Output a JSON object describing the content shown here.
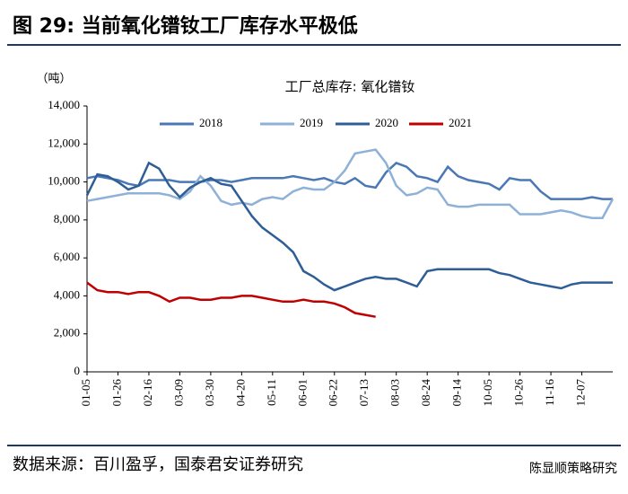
{
  "header": {
    "figure_title": "图 29:  当前氧化镨钕工厂库存水平极低"
  },
  "footer": {
    "source": "数据来源：百川盈孚，国泰君安证券研究",
    "watermark": "陈显顺策略研究"
  },
  "chart_data": {
    "type": "line",
    "title": "工厂总库存: 氧化镨钕",
    "y_unit": "（吨）",
    "categories": [
      "01-05",
      null,
      null,
      "01-26",
      null,
      null,
      "02-16",
      null,
      null,
      "03-09",
      null,
      null,
      "03-30",
      null,
      null,
      "04-20",
      null,
      null,
      "05-11",
      null,
      null,
      "06-01",
      null,
      null,
      "06-22",
      null,
      null,
      "07-13",
      null,
      null,
      "08-03",
      null,
      null,
      "08-24",
      null,
      null,
      "09-14",
      null,
      null,
      "10-05",
      null,
      null,
      "10-26",
      null,
      null,
      "11-16",
      null,
      null,
      "12-07",
      null,
      null,
      null
    ],
    "ylim": [
      0,
      14000
    ],
    "yticks": [
      0,
      {
        "value": 2000,
        "label": "2,000"
      },
      {
        "value": 4000,
        "label": "4,000"
      },
      {
        "value": 6000,
        "label": "6,000"
      },
      {
        "value": 8000,
        "label": "8,000"
      },
      {
        "value": 10000,
        "label": "10,000"
      },
      {
        "value": 12000,
        "label": "12,000"
      },
      {
        "value": 14000,
        "label": "14,000"
      }
    ],
    "legend": "top",
    "series": [
      {
        "name": "2018",
        "color": "#4a78b5",
        "values": [
          10200,
          10300,
          10200,
          10100,
          9900,
          9800,
          10100,
          10100,
          10100,
          10000,
          10000,
          10000,
          10100,
          10100,
          10000,
          10100,
          10200,
          10200,
          10200,
          10200,
          10300,
          10200,
          10100,
          10200,
          10000,
          9900,
          10200,
          9800,
          9700,
          10500,
          11000,
          10800,
          10300,
          10200,
          10000,
          10800,
          10300,
          10100,
          10000,
          9900,
          9600,
          10200,
          10100,
          10100,
          9500,
          9100,
          9100,
          9100,
          9100,
          9200,
          9100,
          9100
        ]
      },
      {
        "name": "2019",
        "color": "#8eb1d8",
        "values": [
          9000,
          9100,
          9200,
          9300,
          9400,
          9400,
          9400,
          9400,
          9300,
          9100,
          9500,
          10300,
          9800,
          9000,
          8800,
          8900,
          8800,
          9100,
          9200,
          9100,
          9500,
          9700,
          9600,
          9600,
          10000,
          10600,
          11500,
          11600,
          11700,
          11000,
          9800,
          9300,
          9400,
          9700,
          9600,
          8800,
          8700,
          8700,
          8800,
          8800,
          8800,
          8800,
          8300,
          8300,
          8300,
          8400,
          8500,
          8400,
          8200,
          8100,
          8100,
          9100
        ]
      },
      {
        "name": "2020",
        "color": "#2f5d95",
        "values": [
          9300,
          10400,
          10300,
          10000,
          9600,
          9800,
          11000,
          10700,
          9800,
          9200,
          9700,
          10000,
          10200,
          9900,
          9800,
          9000,
          8200,
          7600,
          7200,
          6800,
          6300,
          5300,
          5000,
          4600,
          4300,
          4500,
          4700,
          4900,
          5000,
          4900,
          4900,
          4700,
          4500,
          5300,
          5400,
          5400,
          5400,
          5400,
          5400,
          5400,
          5200,
          5100,
          4900,
          4700,
          4600,
          4500,
          4400,
          4600,
          4700,
          4700,
          4700,
          4700
        ]
      },
      {
        "name": "2021",
        "color": "#c00000",
        "values": [
          4700,
          4300,
          4200,
          4200,
          4100,
          4200,
          4200,
          4000,
          3700,
          3900,
          3900,
          3800,
          3800,
          3900,
          3900,
          4000,
          4000,
          3900,
          3800,
          3700,
          3700,
          3800,
          3700,
          3700,
          3600,
          3400,
          3100,
          3000,
          2900,
          null,
          null,
          null,
          null,
          null,
          null,
          null,
          null,
          null,
          null,
          null,
          null,
          null,
          null,
          null,
          null,
          null,
          null,
          null,
          null,
          null,
          null,
          null
        ]
      }
    ]
  }
}
